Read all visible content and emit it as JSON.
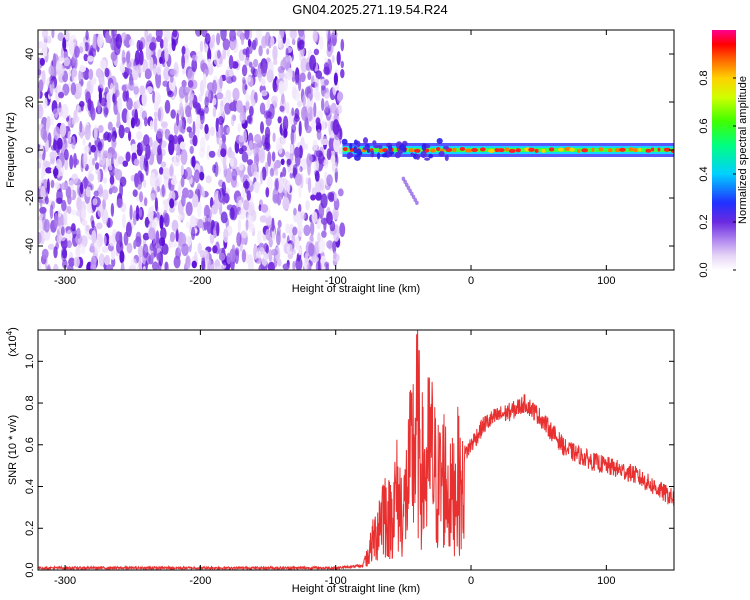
{
  "title": "GN04.2025.271.19.54.R24",
  "chart_data": [
    {
      "type": "heatmap",
      "xlabel": "Height of straight line (km)",
      "ylabel": "Frequency (Hz)",
      "xlim": [
        -320,
        150
      ],
      "ylim": [
        -50,
        50
      ],
      "xticks": [
        -300,
        -200,
        -100,
        0,
        100
      ],
      "yticks": [
        -40,
        -20,
        0,
        20,
        40
      ],
      "grid": false,
      "colorbar": {
        "label": "Normalized spectral amplitude",
        "range": [
          0,
          1
        ],
        "ticks": [
          "0.0",
          "0.2",
          "0.4",
          "0.6",
          "0.8"
        ],
        "tick_values": [
          0,
          0.2,
          0.4,
          0.6,
          0.8
        ]
      },
      "features": {
        "noise_region_x": [
          -320,
          -95
        ],
        "carrier_line": {
          "x": [
            -95,
            150
          ],
          "frequency_hz": 0,
          "peak_amplitude": 0.95
        },
        "tail_streak": {
          "x": [
            -50,
            -40
          ],
          "frequency_hz": [
            -12,
            -22
          ]
        }
      }
    },
    {
      "type": "line",
      "xlabel": "Height of straight line (km)",
      "ylabel": "SNR (10 * v/v)",
      "y_multiplier": "(x10",
      "y_multiplier_exp": "4",
      "y_multiplier_close": ")",
      "xlim": [
        -320,
        150
      ],
      "ylim": [
        0.0,
        1.15
      ],
      "xticks": [
        -300,
        -200,
        -100,
        0,
        100
      ],
      "yticks": [
        "0.0",
        "0.2",
        "0.4",
        "0.6",
        "0.8",
        "1.0"
      ],
      "ytick_values": [
        0.0,
        0.2,
        0.4,
        0.6,
        0.8,
        1.0
      ],
      "grid": false,
      "color": "#e83030",
      "x": [
        -320,
        -200,
        -100,
        -80,
        -75,
        -70,
        -65,
        -60,
        -55,
        -50,
        -45,
        -40,
        -35,
        -30,
        -25,
        -20,
        -15,
        -10,
        -5,
        0,
        10,
        20,
        30,
        40,
        50,
        60,
        70,
        80,
        90,
        100,
        110,
        120,
        130,
        140,
        150
      ],
      "y": [
        0.01,
        0.01,
        0.01,
        0.02,
        0.15,
        0.3,
        0.5,
        0.4,
        0.6,
        0.45,
        0.8,
        1.12,
        0.7,
        0.95,
        0.65,
        0.75,
        0.55,
        0.72,
        0.55,
        0.6,
        0.7,
        0.74,
        0.76,
        0.8,
        0.74,
        0.66,
        0.58,
        0.55,
        0.52,
        0.5,
        0.48,
        0.46,
        0.42,
        0.38,
        0.34
      ]
    }
  ]
}
